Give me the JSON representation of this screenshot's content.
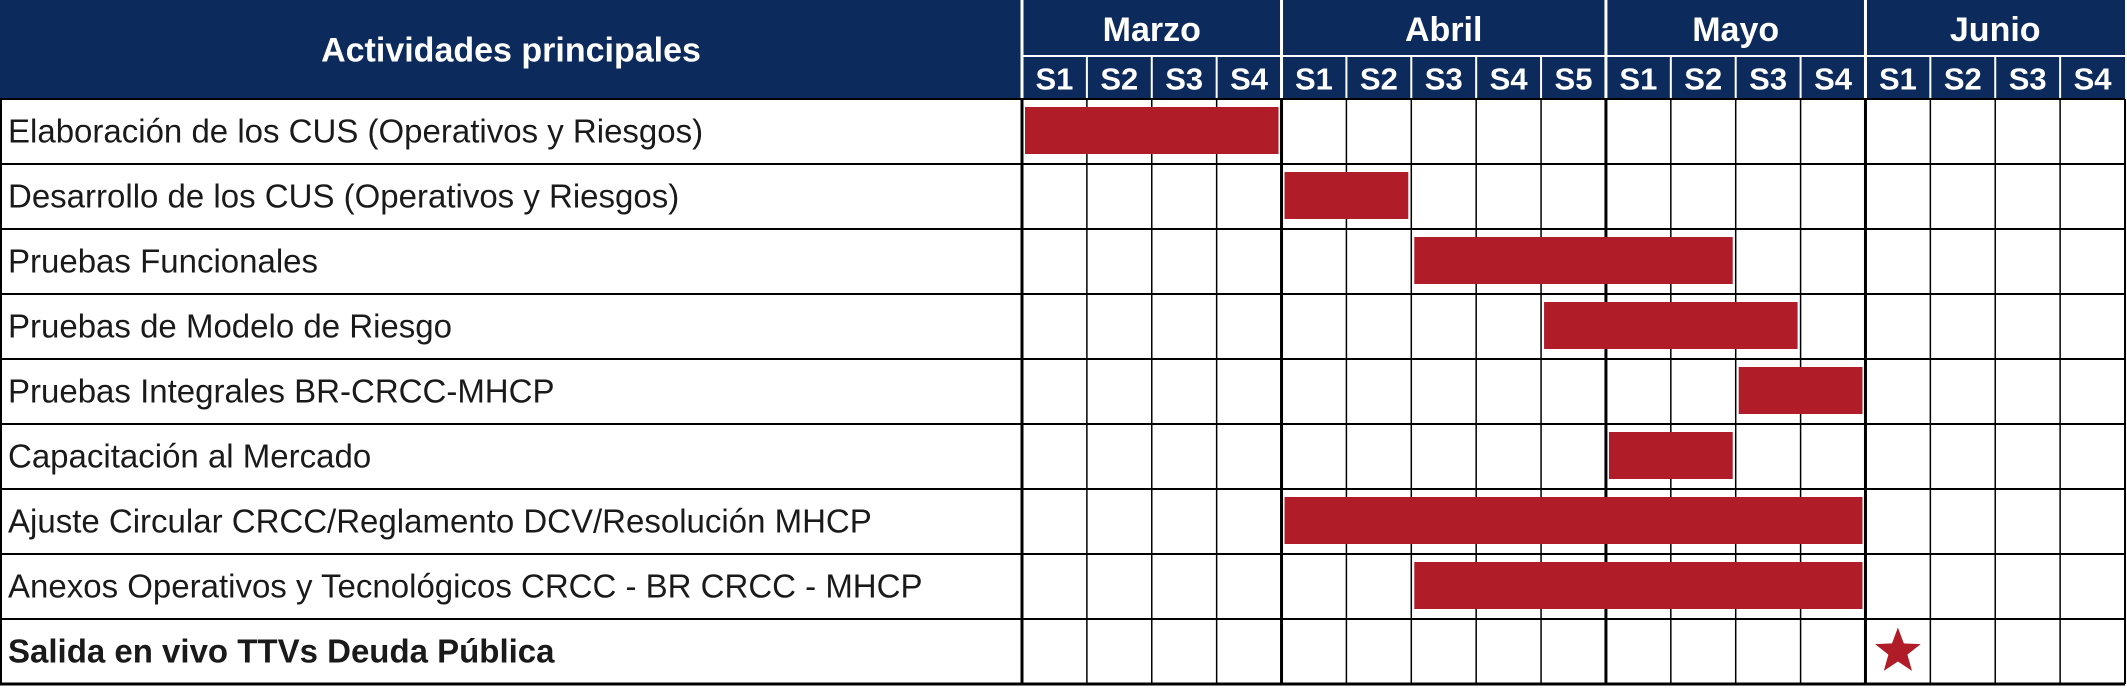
{
  "header": {
    "activities_label": "Actividades principales"
  },
  "colors": {
    "header_bg": "#0c2a5b",
    "header_text": "#ffffff",
    "bar": "#b01c27",
    "star": "#b01c27",
    "grid": "#000000",
    "text": "#1a1a1a"
  },
  "chart_data": {
    "type": "gantt",
    "months": [
      {
        "name": "Marzo",
        "weeks": [
          "S1",
          "S2",
          "S3",
          "S4"
        ]
      },
      {
        "name": "Abril",
        "weeks": [
          "S1",
          "S2",
          "S3",
          "S4",
          "S5"
        ]
      },
      {
        "name": "Mayo",
        "weeks": [
          "S1",
          "S2",
          "S3",
          "S4"
        ]
      },
      {
        "name": "Junio",
        "weeks": [
          "S1",
          "S2",
          "S3",
          "S4"
        ]
      }
    ],
    "tasks": [
      {
        "name": "Elaboración de los CUS (Operativos y Riesgos)",
        "start_week": 0,
        "end_week": 4,
        "bold": false
      },
      {
        "name": "Desarrollo de los CUS (Operativos y Riesgos)",
        "start_week": 4,
        "end_week": 6,
        "bold": false
      },
      {
        "name": "Pruebas Funcionales",
        "start_week": 6,
        "end_week": 11,
        "bold": false
      },
      {
        "name": "Pruebas de Modelo de Riesgo",
        "start_week": 8,
        "end_week": 12,
        "bold": false
      },
      {
        "name": "Pruebas Integrales BR-CRCC-MHCP",
        "start_week": 11,
        "end_week": 13,
        "bold": false
      },
      {
        "name": "Capacitación al Mercado",
        "start_week": 9,
        "end_week": 11,
        "bold": false
      },
      {
        "name": "Ajuste Circular CRCC/Reglamento DCV/Resolución MHCP",
        "start_week": 4,
        "end_week": 13,
        "bold": false
      },
      {
        "name": "Anexos Operativos y Tecnológicos CRCC - BR CRCC - MHCP",
        "start_week": 6,
        "end_week": 13,
        "bold": false
      },
      {
        "name": "Salida en vivo TTVs Deuda Pública",
        "milestone_week": 13,
        "bold": true
      }
    ]
  }
}
